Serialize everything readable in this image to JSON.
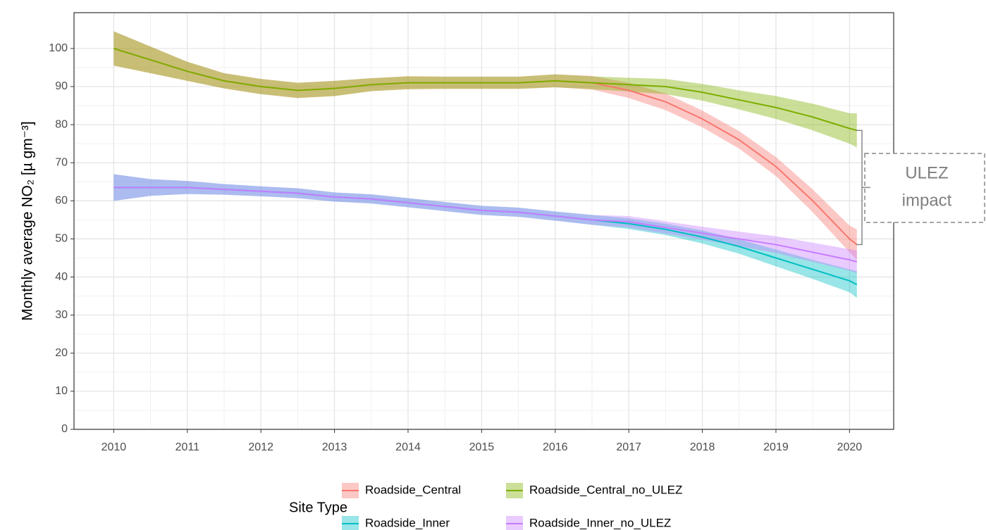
{
  "chart_data": {
    "type": "line",
    "y_label": "Monthly average NO₂ [µ gm⁻³]",
    "legend_title": "Site Type",
    "annotation": [
      "ULEZ",
      "impact"
    ],
    "x": [
      2010,
      2010.5,
      2011,
      2011.5,
      2012,
      2012.5,
      2013,
      2013.5,
      2014,
      2014.5,
      2015,
      2015.5,
      2016,
      2016.5,
      2017,
      2017.5,
      2018,
      2018.5,
      2019,
      2019.5,
      2020,
      2020.1
    ],
    "xlim": [
      2009.46,
      2020.6
    ],
    "xticks": [
      2010,
      2011,
      2012,
      2013,
      2014,
      2015,
      2016,
      2017,
      2018,
      2019,
      2020
    ],
    "ylim": [
      0,
      109.4
    ],
    "yticks": [
      0,
      10,
      20,
      30,
      40,
      50,
      60,
      70,
      80,
      90,
      100
    ],
    "grid": true,
    "minor_grid": true,
    "series": [
      {
        "name": "Roadside_Central",
        "color": "#F8766D",
        "values": [
          100,
          97,
          94,
          91.5,
          90,
          89,
          89.5,
          90.5,
          91,
          91,
          91,
          91,
          91.5,
          91,
          89,
          86,
          81.5,
          76,
          69,
          60,
          50,
          48.5
        ],
        "lower": [
          95.5,
          93.5,
          91.5,
          89.5,
          88,
          87,
          87.5,
          88.8,
          89.3,
          89.4,
          89.4,
          89.4,
          89.8,
          89.2,
          87,
          83.8,
          79.3,
          73.7,
          66.5,
          57,
          46.5,
          44.5
        ],
        "upper": [
          104.5,
          100.5,
          96.5,
          93.5,
          92,
          91,
          91.5,
          92.2,
          92.7,
          92.6,
          92.6,
          92.6,
          93.2,
          92.8,
          91,
          88.2,
          83.7,
          78.3,
          71.5,
          63,
          53.5,
          52.5
        ]
      },
      {
        "name": "Roadside_Central_no_ULEZ",
        "color": "#7CAE00",
        "values": [
          100,
          97,
          94,
          91.5,
          90,
          89,
          89.5,
          90.5,
          91,
          91,
          91,
          91,
          91.5,
          91,
          90.5,
          90,
          88.5,
          86.5,
          84.5,
          82,
          79,
          78.5
        ],
        "lower": [
          95.5,
          93.5,
          91.5,
          89.5,
          88,
          87,
          87.5,
          88.8,
          89.3,
          89.4,
          89.4,
          89.4,
          89.8,
          89.3,
          88.7,
          88,
          86.3,
          84,
          81.5,
          78.5,
          75,
          74
        ],
        "upper": [
          104.5,
          100.5,
          96.5,
          93.5,
          92,
          91,
          91.5,
          92.2,
          92.7,
          92.6,
          92.6,
          92.6,
          93.2,
          92.7,
          92.3,
          92,
          90.7,
          89,
          87.5,
          85.5,
          83,
          83
        ]
      },
      {
        "name": "Roadside_Inner",
        "color": "#00BFC4",
        "values": [
          63.5,
          63.5,
          63.5,
          63,
          62.5,
          62,
          61,
          60.5,
          59.5,
          58.5,
          57.5,
          57,
          56,
          55,
          54,
          52.5,
          50.5,
          48,
          45,
          42,
          39,
          38
        ],
        "lower": [
          60,
          61.3,
          61.8,
          61.6,
          61.2,
          60.7,
          59.8,
          59.3,
          58.3,
          57.3,
          56.3,
          55.8,
          54.8,
          53.7,
          52.6,
          51,
          48.8,
          46.1,
          42.8,
          39.5,
          36,
          34.5
        ],
        "upper": [
          67,
          65.7,
          65.2,
          64.4,
          63.8,
          63.3,
          62.2,
          61.7,
          60.7,
          59.7,
          58.7,
          58.2,
          57.2,
          56.3,
          55.4,
          54,
          52.2,
          49.9,
          47.2,
          44.5,
          42,
          41.5
        ]
      },
      {
        "name": "Roadside_Inner_no_ULEZ",
        "color": "#C77CFF",
        "values": [
          63.5,
          63.5,
          63.5,
          63,
          62.5,
          62,
          61,
          60.5,
          59.5,
          58.5,
          57.5,
          57,
          56,
          55,
          54.5,
          53,
          51.5,
          50,
          48.5,
          46.5,
          44.5,
          44
        ],
        "lower": [
          60,
          61.3,
          61.8,
          61.6,
          61.2,
          60.7,
          59.8,
          59.3,
          58.3,
          57.3,
          56.3,
          55.8,
          54.8,
          53.7,
          53,
          51.4,
          49.8,
          48.1,
          46.3,
          44,
          41.7,
          41
        ],
        "upper": [
          67,
          65.7,
          65.2,
          64.4,
          63.8,
          63.3,
          62.2,
          61.7,
          60.7,
          59.7,
          58.7,
          58.2,
          57.2,
          56.3,
          56,
          54.6,
          53.2,
          51.9,
          50.7,
          49,
          47.3,
          47
        ]
      }
    ]
  }
}
